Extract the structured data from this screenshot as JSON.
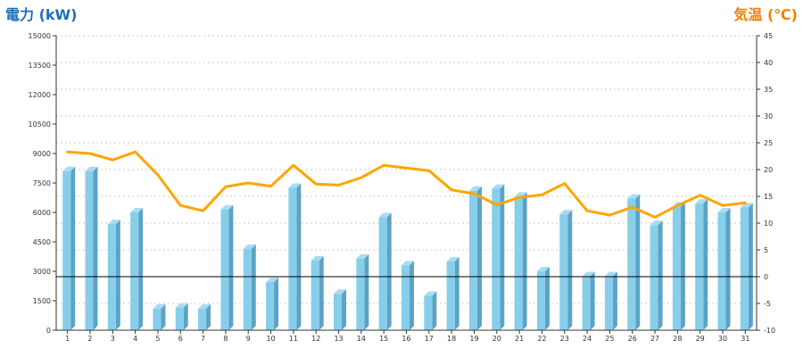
{
  "chart_data": {
    "type": "bar",
    "title": "",
    "left_axis": {
      "label": "電力 (kW)",
      "ylim": [
        0,
        15000
      ],
      "ticks": [
        0,
        1500,
        3000,
        4500,
        6000,
        7500,
        9000,
        10500,
        12000,
        13500,
        15000
      ]
    },
    "right_axis": {
      "label": "気温 (℃)",
      "ylim": [
        -10,
        45
      ],
      "ticks": [
        -10,
        -5,
        0,
        5,
        10,
        15,
        20,
        25,
        30,
        35,
        40,
        45
      ]
    },
    "categories": [
      "1",
      "2",
      "3",
      "4",
      "5",
      "6",
      "7",
      "8",
      "9",
      "10",
      "11",
      "12",
      "13",
      "14",
      "15",
      "16",
      "17",
      "18",
      "19",
      "20",
      "21",
      "22",
      "23",
      "24",
      "25",
      "26",
      "27",
      "28",
      "29",
      "30",
      "31"
    ],
    "series": [
      {
        "type": "bar",
        "axis": "left",
        "values": [
          8100,
          8100,
          5400,
          6000,
          1100,
          1150,
          1100,
          6150,
          4150,
          2450,
          7250,
          3550,
          1850,
          3650,
          5750,
          3300,
          1750,
          3500,
          7100,
          7200,
          6800,
          3000,
          5900,
          2750,
          2750,
          6700,
          5350,
          6300,
          6450,
          6000,
          6250
        ]
      },
      {
        "type": "line",
        "axis": "right",
        "values": [
          23.3,
          23.0,
          21.8,
          23.3,
          19.0,
          13.3,
          12.3,
          16.8,
          17.5,
          16.9,
          20.8,
          17.3,
          17.1,
          18.5,
          20.8,
          20.3,
          19.8,
          16.2,
          15.5,
          13.4,
          14.8,
          15.3,
          17.4,
          12.3,
          11.5,
          13.0,
          11.1,
          13.3,
          15.2,
          13.3,
          13.8
        ]
      }
    ],
    "reference_lines": [
      {
        "axis": "right",
        "value": 0
      }
    ],
    "grid": true,
    "colors": {
      "bar_face": "#87CEEB",
      "bar_side": "#5BA3C6",
      "bar_top": "#A8DCF0",
      "line": "#FFA500",
      "grid": "#BBBBBB",
      "left_label": "#1E6FB8",
      "right_label": "#F08000",
      "reference_line": "#000000"
    }
  }
}
